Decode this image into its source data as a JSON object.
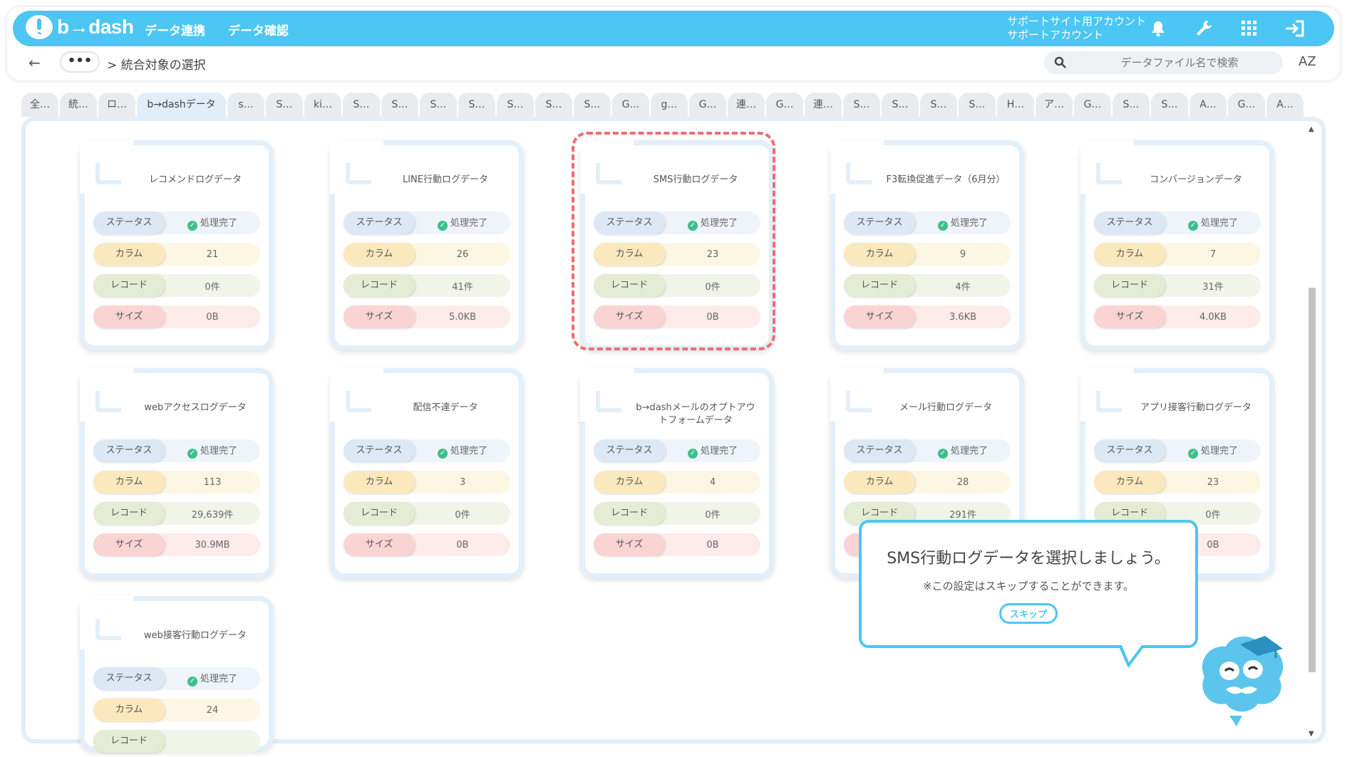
{
  "brand": {
    "logo_text": "b→dash",
    "accent": "#4cc6f2"
  },
  "nav": {
    "items": [
      "データ連携",
      "データ確認"
    ]
  },
  "account": {
    "line1": "サポートサイト用アカウント",
    "line2": "サポートアカウント"
  },
  "icons": [
    "bell-icon",
    "wrench-icon",
    "grid-icon",
    "logout-icon"
  ],
  "breadcrumb": {
    "back": "←",
    "more": "•••",
    "current": "> 統合対象の選択"
  },
  "search": {
    "placeholder": "データファイル名で検索",
    "sort": "AZ"
  },
  "tabs": [
    "全…",
    "統…",
    "ロ…",
    "b→dashデータ",
    "s…",
    "S…",
    "ki…",
    "S…",
    "S…",
    "S…",
    "S…",
    "S…",
    "S…",
    "S…",
    "G…",
    "g…",
    "G…",
    "連…",
    "G…",
    "連…",
    "S…",
    "S…",
    "S…",
    "S…",
    "H…",
    "ア…",
    "G…",
    "S…",
    "S…",
    "A…",
    "G…",
    "A…"
  ],
  "labels": {
    "status": "ステータス",
    "column": "カラム",
    "record": "レコード",
    "size": "サイズ"
  },
  "cards": [
    {
      "title": "レコメンドログデータ",
      "status": "処理完了",
      "column": "21",
      "record": "0件",
      "size": "0B"
    },
    {
      "title": "LINE行動ログデータ",
      "status": "処理完了",
      "column": "26",
      "record": "41件",
      "size": "5.0KB"
    },
    {
      "title": "SMS行動ログデータ",
      "status": "処理完了",
      "column": "23",
      "record": "0件",
      "size": "0B"
    },
    {
      "title": "F3転換促進データ（6月分）",
      "status": "処理完了",
      "column": "9",
      "record": "4件",
      "size": "3.6KB"
    },
    {
      "title": "コンバージョンデータ",
      "status": "処理完了",
      "column": "7",
      "record": "31件",
      "size": "4.0KB"
    },
    {
      "title": "webアクセスログデータ",
      "status": "処理完了",
      "column": "113",
      "record": "29,639件",
      "size": "30.9MB"
    },
    {
      "title": "配信不達データ",
      "status": "処理完了",
      "column": "3",
      "record": "0件",
      "size": "0B"
    },
    {
      "title": "b→dashメールのオプトアウトフォームデータ",
      "status": "処理完了",
      "column": "4",
      "record": "0件",
      "size": "0B"
    },
    {
      "title": "メール行動ログデータ",
      "status": "処理完了",
      "column": "28",
      "record": "291件",
      "size": ""
    },
    {
      "title": "アプリ接客行動ログデータ",
      "status": "処理完了",
      "column": "23",
      "record": "0件",
      "size": "0B"
    },
    {
      "title": "web接客行動ログデータ",
      "status": "処理完了",
      "column": "24",
      "record": "",
      "size": ""
    }
  ],
  "tooltip": {
    "message": "SMS行動ログデータを選択しましょう。",
    "note": "※この設定はスキップすることができます。",
    "skip": "スキップ"
  }
}
